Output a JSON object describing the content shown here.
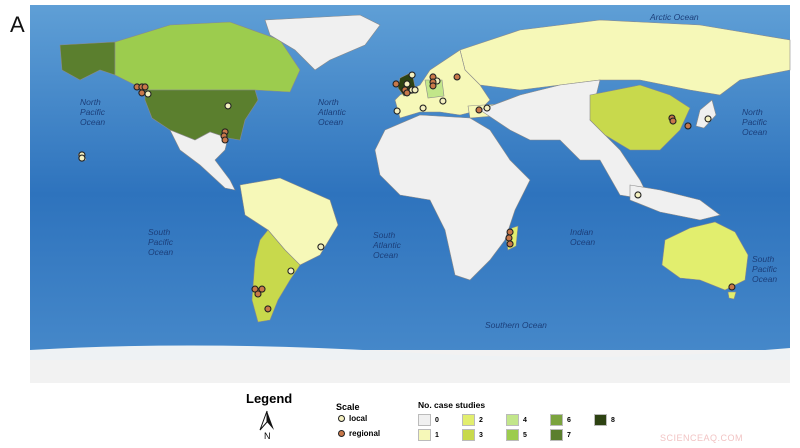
{
  "panel_label": "A",
  "oceans": [
    {
      "name": "Arctic Ocean",
      "lines": [
        "Arctic Ocean"
      ]
    },
    {
      "name": "North Pacific Ocean (west)",
      "lines": [
        "North",
        "Pacific",
        "Ocean"
      ]
    },
    {
      "name": "North Atlantic Ocean",
      "lines": [
        "North",
        "Atlantic",
        "Ocean"
      ]
    },
    {
      "name": "North Pacific Ocean (east)",
      "lines": [
        "North",
        "Pacific",
        "Ocean"
      ]
    },
    {
      "name": "South Pacific Ocean (west)",
      "lines": [
        "South",
        "Pacific",
        "Ocean"
      ]
    },
    {
      "name": "South Atlantic Ocean",
      "lines": [
        "South",
        "Atlantic",
        "Ocean"
      ]
    },
    {
      "name": "Indian Ocean",
      "lines": [
        "Indian",
        "Ocean"
      ]
    },
    {
      "name": "South Pacific Ocean (east)",
      "lines": [
        "South",
        "Pacific",
        "Ocean"
      ]
    },
    {
      "name": "Southern Ocean",
      "lines": [
        "Southern Ocean"
      ]
    }
  ],
  "regions": [
    {
      "name": "Alaska",
      "cases": 7
    },
    {
      "name": "Canada",
      "cases": 5
    },
    {
      "name": "USA",
      "cases": 7
    },
    {
      "name": "Greenland",
      "cases": 0
    },
    {
      "name": "Mexico & Central America",
      "cases": 0
    },
    {
      "name": "Brazil",
      "cases": 1
    },
    {
      "name": "Chile & Argentina",
      "cases": 3
    },
    {
      "name": "Russia",
      "cases": 1
    },
    {
      "name": "UK",
      "cases": 8
    },
    {
      "name": "Germany",
      "cases": 4
    },
    {
      "name": "Africa",
      "cases": 0
    },
    {
      "name": "China",
      "cases": 3
    },
    {
      "name": "Australia",
      "cases": 2
    },
    {
      "name": "Madagascar",
      "cases": 2
    }
  ],
  "sites": [
    {
      "scale": "local",
      "lat": 20.7,
      "lon": -155.4
    },
    {
      "scale": "local",
      "lat": 19.2,
      "lon": -155.4
    },
    {
      "scale": "regional",
      "lat": 52.6,
      "lon": -129.3
    },
    {
      "scale": "regional",
      "lat": 52.6,
      "lon": -127
    },
    {
      "scale": "regional",
      "lat": 52.6,
      "lon": -125.5
    },
    {
      "scale": "regional",
      "lat": 49.8,
      "lon": -127
    },
    {
      "scale": "local",
      "lat": 49.3,
      "lon": -124.1
    },
    {
      "scale": "local",
      "lat": 43.7,
      "lon": -86.2
    },
    {
      "scale": "regional",
      "lat": 31.5,
      "lon": -87.6
    },
    {
      "scale": "regional",
      "lat": 29.6,
      "lon": -88.1
    },
    {
      "scale": "regional",
      "lat": 27.7,
      "lon": -87.6
    },
    {
      "scale": "local",
      "lat": -22.5,
      "lon": -42.2
    },
    {
      "scale": "local",
      "lat": -33.8,
      "lon": -56.4
    },
    {
      "scale": "regional",
      "lat": -42.3,
      "lon": -73.4
    },
    {
      "scale": "regional",
      "lat": -42.3,
      "lon": -70.1
    },
    {
      "scale": "regional",
      "lat": -44.6,
      "lon": -72
    },
    {
      "scale": "regional",
      "lat": -51.6,
      "lon": -67.3
    },
    {
      "scale": "local",
      "lat": 58.2,
      "lon": 1.0
    },
    {
      "scale": "regional",
      "lat": 54.0,
      "lon": -6.6
    },
    {
      "scale": "local",
      "lat": 54.0,
      "lon": -1.4
    },
    {
      "scale": "regional",
      "lat": 51.2,
      "lon": -2.4
    },
    {
      "scale": "regional",
      "lat": 49.8,
      "lon": -1.4
    },
    {
      "scale": "local",
      "lat": 51.2,
      "lon": 1.0
    },
    {
      "scale": "local",
      "lat": 51.2,
      "lon": 2.4
    },
    {
      "scale": "regional",
      "lat": 57.3,
      "lon": 10.9
    },
    {
      "scale": "local",
      "lat": 55.4,
      "lon": 12.8
    },
    {
      "scale": "regional",
      "lat": 54.9,
      "lon": 10.9
    },
    {
      "scale": "regional",
      "lat": 53.1,
      "lon": 10.9
    },
    {
      "scale": "regional",
      "lat": 57.3,
      "lon": 22.3
    },
    {
      "scale": "local",
      "lat": 46.0,
      "lon": 15.6
    },
    {
      "scale": "local",
      "lat": 42.7,
      "lon": 6.2
    },
    {
      "scale": "local",
      "lat": 41.3,
      "lon": -6.1
    },
    {
      "scale": "regional",
      "lat": 41.8,
      "lon": 32.7
    },
    {
      "scale": "local",
      "lat": 42.7,
      "lon": 36.5
    },
    {
      "scale": "regional",
      "lat": -15.5,
      "lon": 47.4
    },
    {
      "scale": "regional",
      "lat": -18.3,
      "lon": 46.9
    },
    {
      "scale": "regional",
      "lat": -21.1,
      "lon": 47.4
    },
    {
      "scale": "regional",
      "lat": 38.0,
      "lon": 124.1
    },
    {
      "scale": "regional",
      "lat": 36.6,
      "lon": 124.6
    },
    {
      "scale": "regional",
      "lat": 34.3,
      "lon": 131.7
    },
    {
      "scale": "local",
      "lat": 37.6,
      "lon": 141.2
    },
    {
      "scale": "local",
      "lat": 1.9,
      "lon": 108
    },
    {
      "scale": "regional",
      "lat": -41.3,
      "lon": 152.5
    }
  ],
  "legend": {
    "title": "Legend",
    "north_label": "N",
    "scale_title": "Scale",
    "scale_items": [
      {
        "label": "local",
        "fill": "#f4f0c0"
      },
      {
        "label": "regional",
        "fill": "#c8784a"
      }
    ],
    "cases_title": "No. case studies",
    "classes": [
      {
        "label": "0",
        "color": "#f0f0f0"
      },
      {
        "label": "1",
        "color": "#f6f8b8"
      },
      {
        "label": "2",
        "color": "#e2ee6e"
      },
      {
        "label": "3",
        "color": "#c8d94c"
      },
      {
        "label": "4",
        "color": "#c2e68a"
      },
      {
        "label": "5",
        "color": "#9ccc4e"
      },
      {
        "label": "6",
        "color": "#7ba33e"
      },
      {
        "label": "7",
        "color": "#5b7f2e"
      },
      {
        "label": "8",
        "color": "#2d4212"
      }
    ]
  },
  "watermark": "SCIENCEAQ.COM"
}
